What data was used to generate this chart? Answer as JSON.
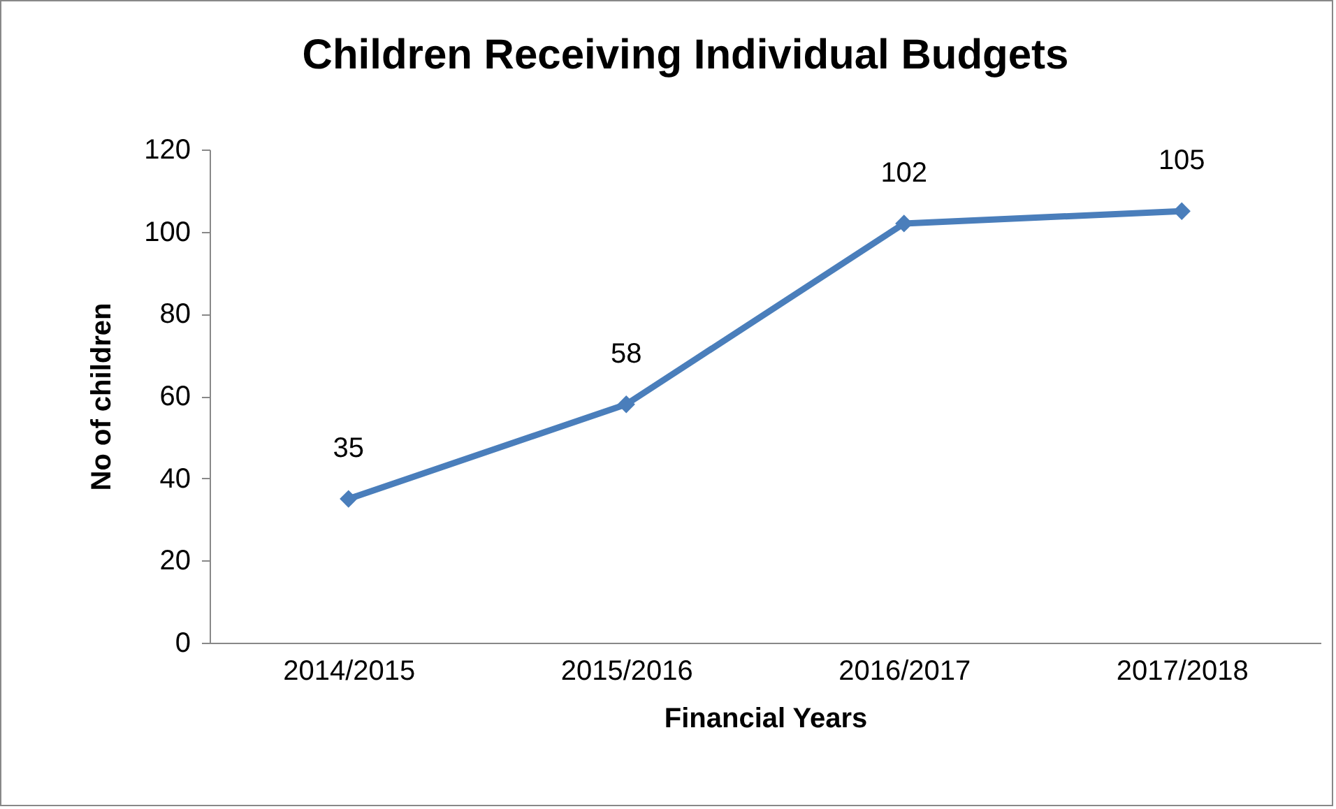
{
  "chart_data": {
    "type": "line",
    "title": "Children Receiving Individual Budgets",
    "xlabel": "Financial Years",
    "ylabel": "No of children",
    "categories": [
      "2014/2015",
      "2015/2016",
      "2016/2017",
      "2017/2018"
    ],
    "series": [
      {
        "color": "#4a7ebb",
        "values": [
          35,
          58,
          102,
          105
        ]
      }
    ],
    "ylim": [
      0,
      120
    ],
    "yticks": [
      0,
      20,
      40,
      60,
      80,
      100,
      120
    ],
    "grid": false,
    "marker": "diamond",
    "data_labels": true
  }
}
